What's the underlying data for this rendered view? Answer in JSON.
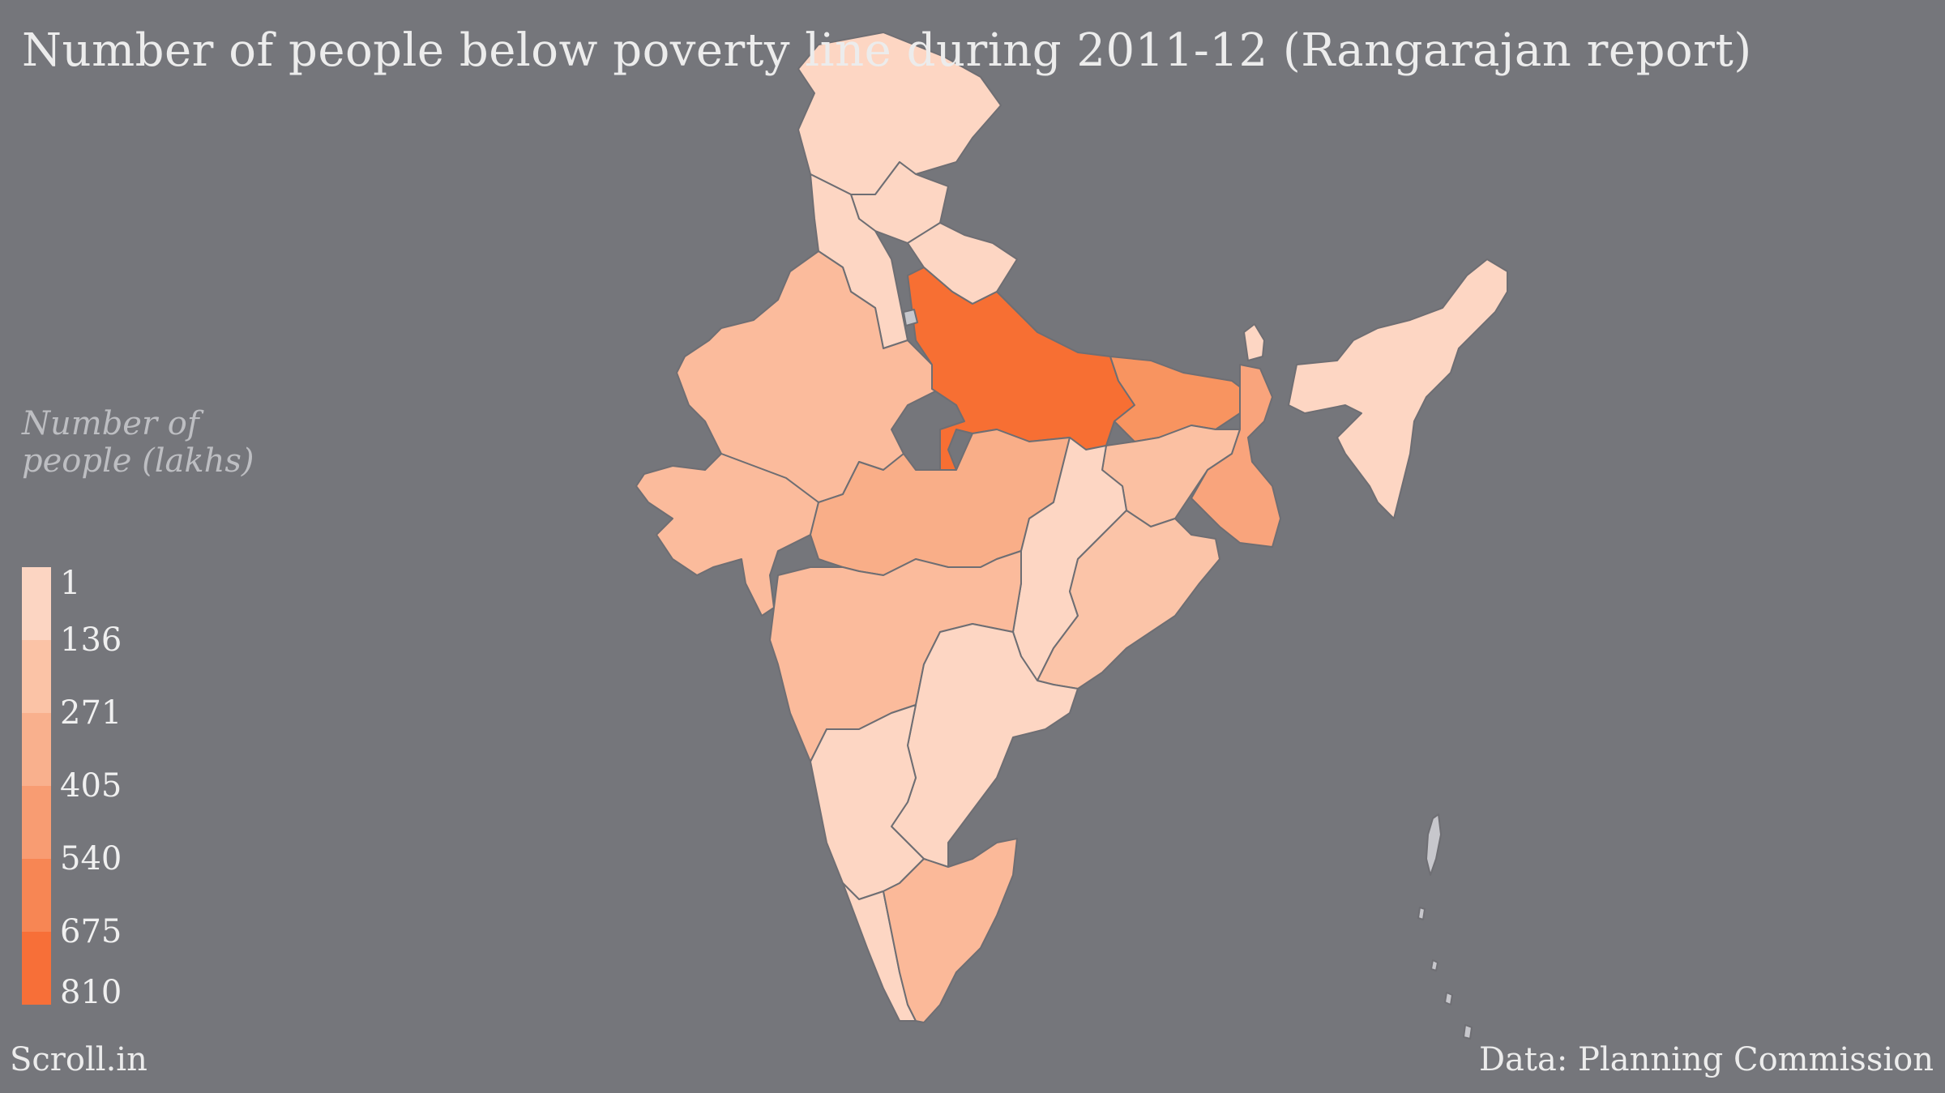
{
  "title": "Number of people below poverty line during 2011-12 (Rangarajan report)",
  "legend": {
    "title_line1": "Number of",
    "title_line2": "people (lakhs)",
    "ticks": [
      "1",
      "136",
      "271",
      "405",
      "540",
      "675",
      "810"
    ],
    "colors": [
      "#fcd5c2",
      "#fbc3a6",
      "#f9b08d",
      "#f89c72",
      "#f78654",
      "#f76f38"
    ]
  },
  "source": "Data: Planning Commission",
  "brand": "Scroll.in",
  "map_colors": {
    "uttar_pradesh": "#f76f33",
    "bihar": "#f89460",
    "west_bengal": "#f9a47c",
    "madhya_pradesh": "#f9ae88",
    "rajasthan_gujarat_maharashtra": "#fbbb9c",
    "tamil_nadu": "#fbb999",
    "north_east_and_others": "#fdd6c3",
    "outline": "#6e6e73"
  }
}
